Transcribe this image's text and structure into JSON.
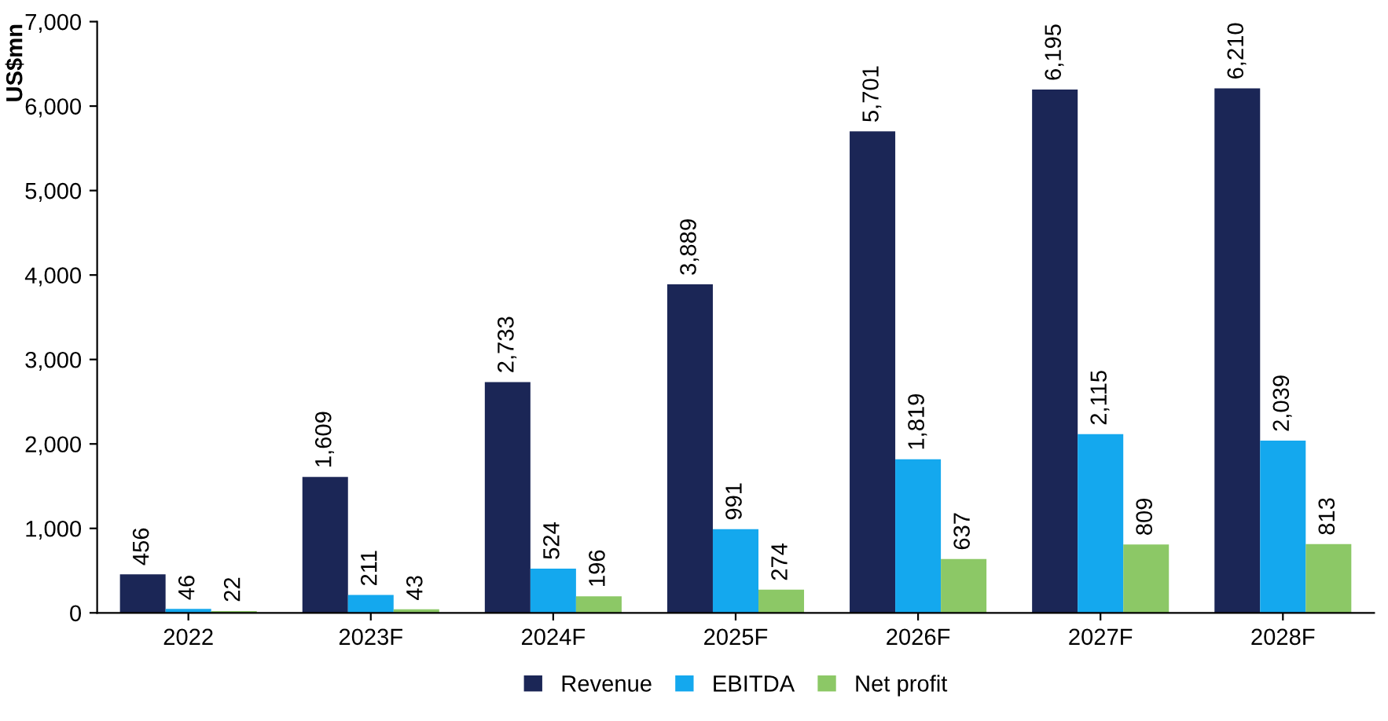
{
  "chart_data": {
    "type": "bar",
    "ylabel": "US$mn",
    "categories": [
      "2022",
      "2023F",
      "2024F",
      "2025F",
      "2026F",
      "2027F",
      "2028F"
    ],
    "series": [
      {
        "name": "Revenue",
        "color": "#1b2656",
        "values": [
          456,
          1609,
          2733,
          3889,
          5701,
          6195,
          6210
        ],
        "value_labels": [
          "456",
          "1,609",
          "2,733",
          "3,889",
          "5,701",
          "6,195",
          "6,210"
        ]
      },
      {
        "name": "EBITDA",
        "color": "#14a8ee",
        "values": [
          46,
          211,
          524,
          991,
          1819,
          2115,
          2039
        ],
        "value_labels": [
          "46",
          "211",
          "524",
          "991",
          "1,819",
          "2,115",
          "2,039"
        ]
      },
      {
        "name": "Net profit",
        "color": "#8cc866",
        "values": [
          22,
          43,
          196,
          274,
          637,
          809,
          813
        ],
        "value_labels": [
          "22",
          "43",
          "196",
          "274",
          "637",
          "809",
          "813"
        ]
      }
    ],
    "ylim": [
      0,
      7000
    ],
    "yticks": [
      0,
      {
        "value": 1000,
        "label": "1,000"
      },
      {
        "value": 2000,
        "label": "2,000"
      },
      {
        "value": 3000,
        "label": "3,000"
      },
      {
        "value": 4000,
        "label": "4,000"
      },
      {
        "value": 5000,
        "label": "5,000"
      },
      {
        "value": 6000,
        "label": "6,000"
      },
      {
        "value": 7000,
        "label": "7,000"
      }
    ],
    "grid": false,
    "legend": "bottom"
  }
}
